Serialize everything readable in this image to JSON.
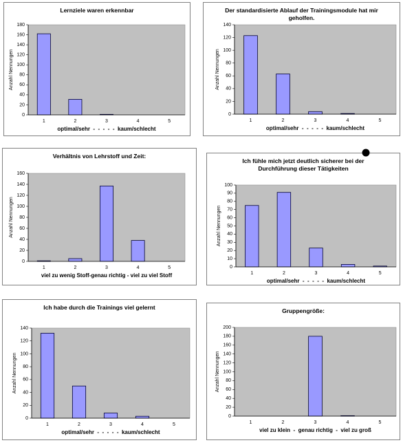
{
  "chart_data": [
    {
      "type": "bar",
      "title": "Lernziele waren erkennbar",
      "y_label": "Anzahl Nennungen",
      "x_label": "optimal/sehr  -  -  -  -  -  kaum/schlecht",
      "categories": [
        "1",
        "2",
        "3",
        "4",
        "5"
      ],
      "values": [
        162,
        31,
        1,
        0,
        0
      ],
      "color": "#9999ff",
      "plot_bg": "#c0c0c0",
      "ylim": [
        0,
        180
      ],
      "yticks": [
        0,
        20,
        40,
        60,
        80,
        100,
        120,
        140,
        160,
        180
      ],
      "grid": false
    },
    {
      "type": "bar",
      "title": "Der standardisierte Ablauf der Trainingsmodule hat mir geholfen.",
      "y_label": "Anzahl Nennungen",
      "x_label": "optimal/sehr  -  -  -  -  -  kaum/schlecht",
      "categories": [
        "1",
        "2",
        "3",
        "4",
        "5"
      ],
      "values": [
        123,
        63,
        4,
        1,
        0
      ],
      "color": "#9999ff",
      "plot_bg": "#c0c0c0",
      "ylim": [
        0,
        140
      ],
      "yticks": [
        0,
        20,
        40,
        60,
        80,
        100,
        120,
        140
      ],
      "grid": false
    },
    {
      "type": "bar",
      "title": "Verhältnis von Lehrstoff und Zeit:",
      "y_label": "Anzahl Nennungen",
      "x_label": "viel zu wenig Stoff-genau richtig - viel zu viel Stoff",
      "categories": [
        "1",
        "2",
        "3",
        "4",
        "5"
      ],
      "values": [
        1,
        5,
        137,
        38,
        0
      ],
      "color": "#9999ff",
      "plot_bg": "#c0c0c0",
      "ylim": [
        0,
        160
      ],
      "yticks": [
        0,
        20,
        40,
        60,
        80,
        100,
        120,
        140,
        160
      ],
      "grid": false
    },
    {
      "type": "bar",
      "title": "Ich fühle mich jetzt deutlich sicherer bei der Durchführung dieser Tätigkeiten",
      "y_label": "Anzahl Nennungen",
      "x_label": "optimal/sehr  -  -  -  -  -  kaum/schlecht",
      "categories": [
        "1",
        "2",
        "3",
        "4",
        "5"
      ],
      "values": [
        75,
        91,
        23,
        3,
        1
      ],
      "color": "#9999ff",
      "plot_bg": "#c0c0c0",
      "ylim": [
        0,
        100
      ],
      "yticks": [
        0,
        10,
        20,
        30,
        40,
        50,
        60,
        70,
        80,
        90,
        100
      ],
      "grid": false
    },
    {
      "type": "bar",
      "title": "Ich habe durch die Trainings viel gelernt",
      "y_label": "Anzahl Nennungen",
      "x_label": "optimal/sehr  -  -  -  -  -  kaum/schlecht",
      "categories": [
        "1",
        "2",
        "3",
        "4",
        "5"
      ],
      "values": [
        132,
        50,
        8,
        3,
        0
      ],
      "color": "#9999ff",
      "plot_bg": "#c0c0c0",
      "ylim": [
        0,
        140
      ],
      "yticks": [
        0,
        20,
        40,
        60,
        80,
        100,
        120,
        140
      ],
      "grid": false
    },
    {
      "type": "bar",
      "title": "Gruppengröße:",
      "y_label": "Anzahl Nennungen",
      "x_label": "viel zu klein  -  genau richtig  -  viel zu groß",
      "categories": [
        "1",
        "2",
        "3",
        "4",
        "5"
      ],
      "values": [
        0,
        0,
        180,
        1,
        0
      ],
      "color": "#9999ff",
      "plot_bg": "#c0c0c0",
      "ylim": [
        0,
        200
      ],
      "yticks": [
        0,
        20,
        40,
        60,
        80,
        100,
        120,
        140,
        160,
        180,
        200
      ],
      "grid": false
    }
  ]
}
